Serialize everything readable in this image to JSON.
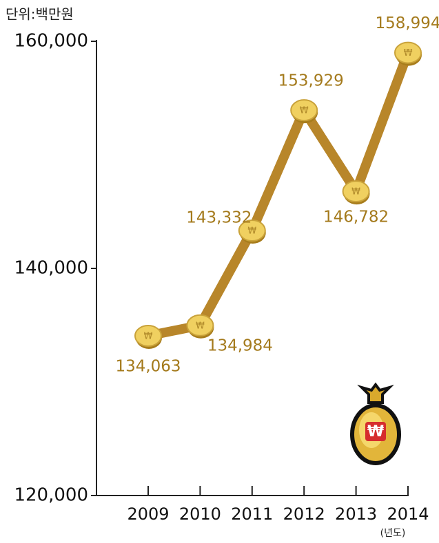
{
  "chart_data": {
    "type": "line",
    "y_unit": "단위:백만원",
    "x_unit": "(년도)",
    "categories": [
      "2009",
      "2010",
      "2011",
      "2012",
      "2013",
      "2014"
    ],
    "values": [
      134063,
      134984,
      143332,
      153929,
      146782,
      158994
    ],
    "value_labels": [
      "134,063",
      "134,984",
      "143,332",
      "153,929",
      "146,782",
      "158,994"
    ],
    "color": "#b8862a",
    "label_color": "#a47a1c",
    "ylim": [
      120000,
      160000
    ],
    "yticks": [
      {
        "value": 120000,
        "label": "120,000"
      },
      {
        "value": 140000,
        "label": "140,000"
      },
      {
        "value": 160000,
        "label": "160,000"
      }
    ]
  }
}
